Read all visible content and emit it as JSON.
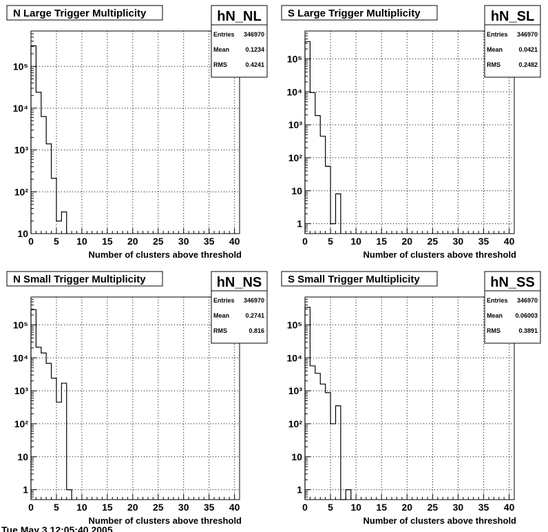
{
  "footer": {
    "date_text": "Tue May 3 12:05:40 2005"
  },
  "chart_data": [
    {
      "type": "bar",
      "histogram": "hN_NL",
      "title": "N Large Trigger Multiplicity",
      "xlabel": "Number of clusters above threshold",
      "ylabel": "",
      "log_y": true,
      "xlim": [
        0,
        41
      ],
      "ylim": [
        10,
        700000
      ],
      "grid": true,
      "x_ticks": [
        "0",
        "5",
        "10",
        "15",
        "20",
        "25",
        "30",
        "35",
        "40"
      ],
      "y_ticks": [
        {
          "v": 10,
          "t": "10"
        },
        {
          "v": 100,
          "t": "10²"
        },
        {
          "v": 1000,
          "t": "10³"
        },
        {
          "v": 10000,
          "t": "10⁴"
        },
        {
          "v": 100000,
          "t": "10⁵"
        }
      ],
      "bin_width": 1,
      "values": [
        310000,
        24000,
        6300,
        1400,
        210,
        20,
        33
      ],
      "stats": {
        "name": "hN_NL",
        "entries_label": "Entries",
        "entries": "346970",
        "mean_label": "Mean",
        "mean": "0.1234",
        "rms_label": "RMS",
        "rms": "0.4241"
      }
    },
    {
      "type": "bar",
      "histogram": "hN_SL",
      "title": "S Large Trigger Multiplicity",
      "xlabel": "Number of clusters above threshold",
      "ylabel": "",
      "log_y": true,
      "xlim": [
        0,
        41
      ],
      "ylim": [
        0.5,
        700000
      ],
      "grid": true,
      "x_ticks": [
        "0",
        "5",
        "10",
        "15",
        "20",
        "25",
        "30",
        "35",
        "40"
      ],
      "y_ticks": [
        {
          "v": 1,
          "t": "1"
        },
        {
          "v": 10,
          "t": "10"
        },
        {
          "v": 100,
          "t": "10²"
        },
        {
          "v": 1000,
          "t": "10³"
        },
        {
          "v": 10000,
          "t": "10⁴"
        },
        {
          "v": 100000,
          "t": "10⁵"
        }
      ],
      "bin_width": 1,
      "values": [
        335000,
        9500,
        1900,
        450,
        55,
        1,
        8
      ],
      "stats": {
        "name": "hN_SL",
        "entries_label": "Entries",
        "entries": "346970",
        "mean_label": "Mean",
        "mean": "0.0421",
        "rms_label": "RMS",
        "rms": "0.2482"
      }
    },
    {
      "type": "bar",
      "histogram": "hN_NS",
      "title": "N Small Trigger Multiplicity",
      "xlabel": "Number of clusters above threshold",
      "ylabel": "",
      "log_y": true,
      "xlim": [
        0,
        41
      ],
      "ylim": [
        0.5,
        700000
      ],
      "grid": true,
      "x_ticks": [
        "0",
        "5",
        "10",
        "15",
        "20",
        "25",
        "30",
        "35",
        "40"
      ],
      "y_ticks": [
        {
          "v": 1,
          "t": "1"
        },
        {
          "v": 10,
          "t": "10"
        },
        {
          "v": 100,
          "t": "10²"
        },
        {
          "v": 1000,
          "t": "10³"
        },
        {
          "v": 10000,
          "t": "10⁴"
        },
        {
          "v": 100000,
          "t": "10⁵"
        }
      ],
      "bin_width": 1,
      "values": [
        290000,
        21000,
        14000,
        6800,
        2400,
        450,
        1700,
        1
      ],
      "stats": {
        "name": "hN_NS",
        "entries_label": "Entries",
        "entries": "346970",
        "mean_label": "Mean",
        "mean": "0.2741",
        "rms_label": "RMS",
        "rms": "0.816"
      }
    },
    {
      "type": "bar",
      "histogram": "hN_SS",
      "title": "S Small Trigger Multiplicity",
      "xlabel": "Number of clusters above threshold",
      "ylabel": "",
      "log_y": true,
      "xlim": [
        0,
        41
      ],
      "ylim": [
        0.5,
        700000
      ],
      "grid": true,
      "x_ticks": [
        "0",
        "5",
        "10",
        "15",
        "20",
        "25",
        "30",
        "35",
        "40"
      ],
      "y_ticks": [
        {
          "v": 1,
          "t": "1"
        },
        {
          "v": 10,
          "t": "10"
        },
        {
          "v": 100,
          "t": "10²"
        },
        {
          "v": 1000,
          "t": "10³"
        },
        {
          "v": 10000,
          "t": "10⁴"
        },
        {
          "v": 100000,
          "t": "10⁵"
        }
      ],
      "bin_width": 1,
      "values": [
        340000,
        5700,
        3400,
        1600,
        880,
        100,
        350,
        0,
        1
      ],
      "stats": {
        "name": "hN_SS",
        "entries_label": "Entries",
        "entries": "346970",
        "mean_label": "Mean",
        "mean": "0.06003",
        "rms_label": "RMS",
        "rms": "0.3891"
      }
    }
  ]
}
